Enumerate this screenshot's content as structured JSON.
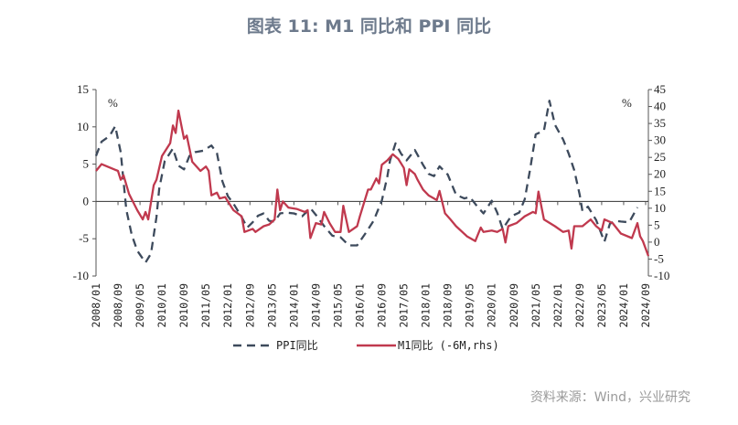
{
  "title": "图表 11: M1 同比和 PPI 同比",
  "source": "资料来源：Wind，兴业研究",
  "chart_data": {
    "type": "line",
    "title": "图表 11: M1 同比和 PPI 同比",
    "left_unit": "%",
    "right_unit": "%",
    "ylim_left": [
      -10,
      15
    ],
    "yticks_left": [
      -10,
      -5,
      0,
      5,
      10,
      15
    ],
    "ylim_right": [
      -10,
      45
    ],
    "yticks_right": [
      -10,
      -5,
      0,
      5,
      10,
      15,
      20,
      25,
      30,
      35,
      40,
      45
    ],
    "xticks": [
      "2008/01",
      "2008/09",
      "2009/05",
      "2010/01",
      "2010/09",
      "2011/05",
      "2012/01",
      "2012/09",
      "2013/05",
      "2014/01",
      "2014/09",
      "2015/05",
      "2016/01",
      "2016/09",
      "2017/05",
      "2018/01",
      "2018/09",
      "2019/05",
      "2020/01",
      "2020/09",
      "2021/05",
      "2022/01",
      "2022/09",
      "2023/05",
      "2024/01",
      "2024/09"
    ],
    "grid": false,
    "legend_position": "bottom",
    "colors": {
      "ppi": "#3d4a5c",
      "m1": "#c0394e"
    },
    "series": [
      {
        "name": "PPI同比",
        "axis": "left",
        "style": "dashed",
        "points": [
          [
            "2008/01",
            6.1
          ],
          [
            "2008/03",
            8.0
          ],
          [
            "2008/06",
            8.8
          ],
          [
            "2008/08",
            10.1
          ],
          [
            "2008/10",
            6.6
          ],
          [
            "2008/12",
            -1.1
          ],
          [
            "2009/02",
            -4.5
          ],
          [
            "2009/04",
            -6.6
          ],
          [
            "2009/07",
            -8.2
          ],
          [
            "2009/09",
            -7.0
          ],
          [
            "2009/11",
            -2.1
          ],
          [
            "2009/12",
            1.7
          ],
          [
            "2010/02",
            5.4
          ],
          [
            "2010/05",
            7.1
          ],
          [
            "2010/07",
            4.8
          ],
          [
            "2010/09",
            4.3
          ],
          [
            "2010/11",
            6.1
          ],
          [
            "2011/01",
            6.6
          ],
          [
            "2011/04",
            6.8
          ],
          [
            "2011/07",
            7.5
          ],
          [
            "2011/09",
            6.5
          ],
          [
            "2011/11",
            2.7
          ],
          [
            "2012/01",
            0.7
          ],
          [
            "2012/03",
            -0.3
          ],
          [
            "2012/06",
            -2.1
          ],
          [
            "2012/08",
            -3.5
          ],
          [
            "2012/10",
            -2.8
          ],
          [
            "2012/12",
            -1.9
          ],
          [
            "2013/02",
            -1.6
          ],
          [
            "2013/04",
            -2.6
          ],
          [
            "2013/06",
            -2.7
          ],
          [
            "2013/08",
            -1.6
          ],
          [
            "2013/10",
            -1.5
          ],
          [
            "2014/01",
            -1.6
          ],
          [
            "2014/04",
            -2.0
          ],
          [
            "2014/07",
            -0.9
          ],
          [
            "2014/09",
            -1.8
          ],
          [
            "2014/12",
            -3.3
          ],
          [
            "2015/03",
            -4.6
          ],
          [
            "2015/06",
            -4.8
          ],
          [
            "2015/09",
            -5.9
          ],
          [
            "2015/12",
            -5.9
          ],
          [
            "2016/03",
            -4.3
          ],
          [
            "2016/06",
            -2.6
          ],
          [
            "2016/08",
            -0.8
          ],
          [
            "2016/09",
            0.1
          ],
          [
            "2016/11",
            3.3
          ],
          [
            "2016/12",
            5.5
          ],
          [
            "2017/02",
            7.8
          ],
          [
            "2017/04",
            6.4
          ],
          [
            "2017/06",
            5.5
          ],
          [
            "2017/09",
            6.9
          ],
          [
            "2017/12",
            4.9
          ],
          [
            "2018/02",
            3.7
          ],
          [
            "2018/04",
            3.4
          ],
          [
            "2018/06",
            4.7
          ],
          [
            "2018/09",
            3.6
          ],
          [
            "2018/12",
            0.9
          ],
          [
            "2019/03",
            0.4
          ],
          [
            "2019/05",
            0.6
          ],
          [
            "2019/08",
            -0.8
          ],
          [
            "2019/10",
            -1.6
          ],
          [
            "2020/01",
            0.1
          ],
          [
            "2020/03",
            -1.5
          ],
          [
            "2020/05",
            -3.7
          ],
          [
            "2020/08",
            -2.0
          ],
          [
            "2020/11",
            -1.5
          ],
          [
            "2021/01",
            0.3
          ],
          [
            "2021/03",
            4.4
          ],
          [
            "2021/05",
            9.0
          ],
          [
            "2021/08",
            9.5
          ],
          [
            "2021/10",
            13.5
          ],
          [
            "2021/12",
            10.3
          ],
          [
            "2022/03",
            8.3
          ],
          [
            "2022/05",
            6.4
          ],
          [
            "2022/07",
            4.2
          ],
          [
            "2022/09",
            0.9
          ],
          [
            "2022/10",
            -1.3
          ],
          [
            "2022/12",
            -0.7
          ],
          [
            "2023/03",
            -2.5
          ],
          [
            "2023/06",
            -5.4
          ],
          [
            "2023/08",
            -3.0
          ],
          [
            "2023/10",
            -2.6
          ],
          [
            "2023/12",
            -2.7
          ],
          [
            "2024/03",
            -2.8
          ],
          [
            "2024/06",
            -0.8
          ]
        ]
      },
      {
        "name": "M1同比 (-6M,rhs)",
        "axis": "right",
        "style": "solid",
        "points": [
          [
            "2008/01",
            21.0
          ],
          [
            "2008/03",
            23.0
          ],
          [
            "2008/09",
            21.0
          ],
          [
            "2008/10",
            18.4
          ],
          [
            "2008/11",
            19.7
          ],
          [
            "2009/01",
            14.2
          ],
          [
            "2009/04",
            9.4
          ],
          [
            "2009/06",
            6.7
          ],
          [
            "2009/07",
            8.9
          ],
          [
            "2009/08",
            6.7
          ],
          [
            "2009/10",
            16.8
          ],
          [
            "2009/11",
            18.4
          ],
          [
            "2010/01",
            25.4
          ],
          [
            "2010/04",
            29.2
          ],
          [
            "2010/05",
            34.4
          ],
          [
            "2010/06",
            32.2
          ],
          [
            "2010/07",
            38.8
          ],
          [
            "2010/09",
            30.5
          ],
          [
            "2010/10",
            31.4
          ],
          [
            "2010/12",
            23.7
          ],
          [
            "2011/03",
            21.0
          ],
          [
            "2011/05",
            22.3
          ],
          [
            "2011/06",
            21.0
          ],
          [
            "2011/07",
            13.8
          ],
          [
            "2011/09",
            14.6
          ],
          [
            "2011/10",
            12.9
          ],
          [
            "2011/12",
            13.3
          ],
          [
            "2012/03",
            9.4
          ],
          [
            "2012/06",
            7.6
          ],
          [
            "2012/07",
            3.0
          ],
          [
            "2012/10",
            3.9
          ],
          [
            "2012/11",
            3.0
          ],
          [
            "2013/02",
            4.7
          ],
          [
            "2013/04",
            5.2
          ],
          [
            "2013/06",
            6.7
          ],
          [
            "2013/07",
            15.5
          ],
          [
            "2013/08",
            9.4
          ],
          [
            "2013/09",
            12.0
          ],
          [
            "2013/11",
            10.2
          ],
          [
            "2014/02",
            9.8
          ],
          [
            "2014/05",
            8.9
          ],
          [
            "2014/06",
            9.4
          ],
          [
            "2014/07",
            1.2
          ],
          [
            "2014/09",
            5.6
          ],
          [
            "2014/11",
            5.2
          ],
          [
            "2014/12",
            8.9
          ],
          [
            "2015/02",
            5.6
          ],
          [
            "2015/04",
            3.0
          ],
          [
            "2015/06",
            3.0
          ],
          [
            "2015/07",
            10.7
          ],
          [
            "2015/09",
            3.0
          ],
          [
            "2015/12",
            4.7
          ],
          [
            "2016/01",
            7.6
          ],
          [
            "2016/04",
            15.5
          ],
          [
            "2016/05",
            15.5
          ],
          [
            "2016/07",
            18.8
          ],
          [
            "2016/08",
            17.3
          ],
          [
            "2016/09",
            22.8
          ],
          [
            "2016/11",
            24.1
          ],
          [
            "2017/01",
            25.9
          ],
          [
            "2017/03",
            24.5
          ],
          [
            "2017/05",
            21.9
          ],
          [
            "2017/06",
            16.8
          ],
          [
            "2017/07",
            21.5
          ],
          [
            "2017/09",
            20.1
          ],
          [
            "2017/10",
            18.4
          ],
          [
            "2017/12",
            15.5
          ],
          [
            "2018/02",
            13.8
          ],
          [
            "2018/05",
            12.4
          ],
          [
            "2018/06",
            15.1
          ],
          [
            "2018/08",
            8.5
          ],
          [
            "2018/10",
            6.7
          ],
          [
            "2018/12",
            4.7
          ],
          [
            "2019/04",
            1.7
          ],
          [
            "2019/07",
            0.3
          ],
          [
            "2019/09",
            4.3
          ],
          [
            "2019/10",
            3.0
          ],
          [
            "2020/01",
            3.4
          ],
          [
            "2020/03",
            3.0
          ],
          [
            "2020/05",
            3.9
          ],
          [
            "2020/06",
            -0.1
          ],
          [
            "2020/07",
            4.7
          ],
          [
            "2020/10",
            5.6
          ],
          [
            "2021/01",
            7.6
          ],
          [
            "2021/04",
            8.9
          ],
          [
            "2021/05",
            8.5
          ],
          [
            "2021/06",
            14.9
          ],
          [
            "2021/08",
            6.7
          ],
          [
            "2021/12",
            4.7
          ],
          [
            "2022/03",
            3.0
          ],
          [
            "2022/05",
            3.4
          ],
          [
            "2022/06",
            -1.9
          ],
          [
            "2022/07",
            4.7
          ],
          [
            "2022/10",
            4.7
          ],
          [
            "2023/01",
            6.7
          ],
          [
            "2023/03",
            4.7
          ],
          [
            "2023/05",
            3.4
          ],
          [
            "2023/06",
            6.7
          ],
          [
            "2023/09",
            5.6
          ],
          [
            "2023/12",
            2.5
          ],
          [
            "2024/04",
            1.2
          ],
          [
            "2024/06",
            5.6
          ],
          [
            "2024/07",
            1.7
          ],
          [
            "2024/08",
            0.3
          ],
          [
            "2024/10",
            -4.1
          ]
        ]
      }
    ]
  }
}
